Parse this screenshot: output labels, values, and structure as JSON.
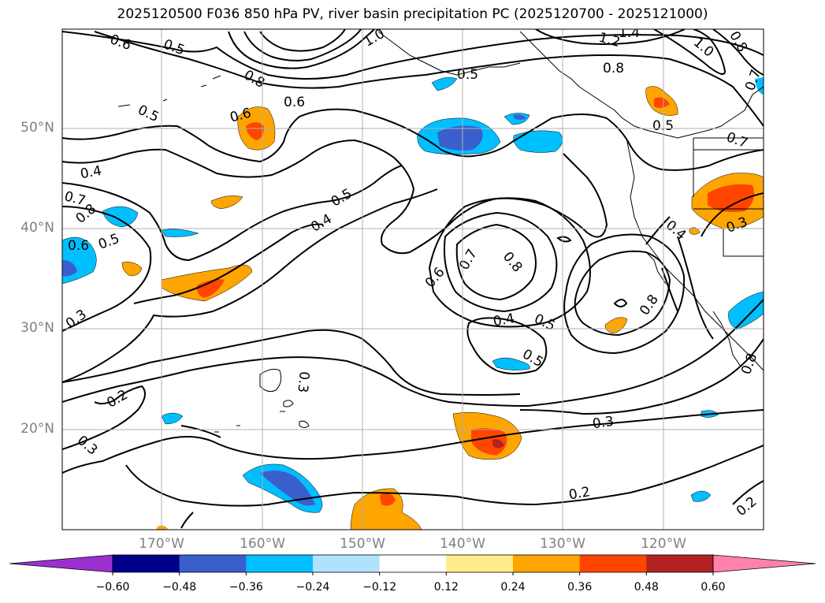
{
  "title": "2025120500 F036 850 hPa PV, river basin precipitation PC (2025120700 - 2025121000)",
  "lat_labels": [
    "50°N",
    "40°N",
    "30°N",
    "20°N"
  ],
  "lon_labels": [
    "170°W",
    "160°W",
    "150°W",
    "140°W",
    "130°W",
    "120°W"
  ],
  "contour_labels": [
    "0.6",
    "0.5",
    "0.8",
    "1.0",
    "1.2",
    "1.4",
    "0.6",
    "0.5",
    "0.6",
    "0.4",
    "0.7",
    "0.8",
    "0.6",
    "0.5",
    "0.4",
    "0.5",
    "0.6",
    "0.7",
    "0.8",
    "0.8",
    "0.4",
    "0.5",
    "0.3",
    "0.3",
    "0.2",
    "0.3",
    "0.2",
    "0.3",
    "0.2",
    "0.5",
    "0.5",
    "0.7",
    "0.8",
    "0.3",
    "0.4",
    "0.7",
    "1.0",
    "0.8",
    "0.8",
    "0.5"
  ],
  "colorbar": {
    "tick_labels": [
      "−0.60",
      "−0.48",
      "−0.36",
      "−0.24",
      "−0.12",
      "0.12",
      "0.24",
      "0.36",
      "0.48",
      "0.60"
    ],
    "colors": [
      "#9b30d0",
      "#00008b",
      "#3a5fcd",
      "#00bfff",
      "#b0e2ff",
      "#ffffff",
      "#ffec8b",
      "#ffa500",
      "#ff4500",
      "#b22222",
      "#ff82ab"
    ]
  }
}
